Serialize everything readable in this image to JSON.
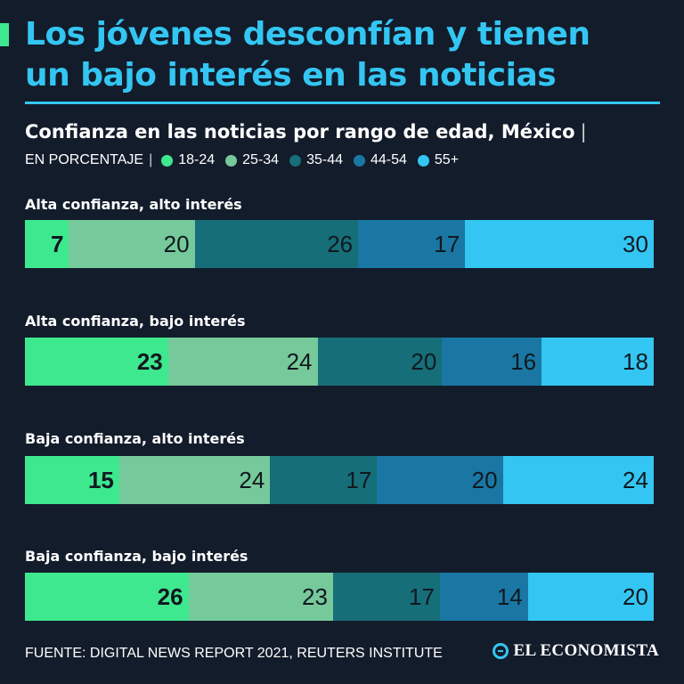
{
  "header": {
    "title_line1": "Los jóvenes desconfían y tienen",
    "title_line2": "un bajo interés en las noticias"
  },
  "chart_data": {
    "type": "bar",
    "orientation": "horizontal",
    "stacked": true,
    "title": "Confianza en las noticias por rango de edad, México",
    "subtitle": "EN PORCENTAJE",
    "categories": [
      "Alta confianza, alto interés",
      "Alta confianza, bajo interés",
      "Baja confianza, alto interés",
      "Baja confianza, bajo interés"
    ],
    "series": [
      {
        "name": "18-24",
        "color": "#3ee88f",
        "values": [
          7,
          23,
          15,
          26
        ]
      },
      {
        "name": "25-34",
        "color": "#76c99a",
        "values": [
          20,
          24,
          24,
          23
        ]
      },
      {
        "name": "35-44",
        "color": "#166e78",
        "values": [
          26,
          20,
          17,
          17
        ]
      },
      {
        "name": "44-54",
        "color": "#1a77a3",
        "values": [
          17,
          16,
          20,
          14
        ]
      },
      {
        "name": "55+",
        "color": "#34c6f2",
        "values": [
          30,
          18,
          24,
          20
        ]
      }
    ]
  },
  "footer": {
    "source": "FUENTE: DIGITAL NEWS REPORT 2021, REUTERS INSTITUTE",
    "brand": "EL ECONOMISTA"
  }
}
